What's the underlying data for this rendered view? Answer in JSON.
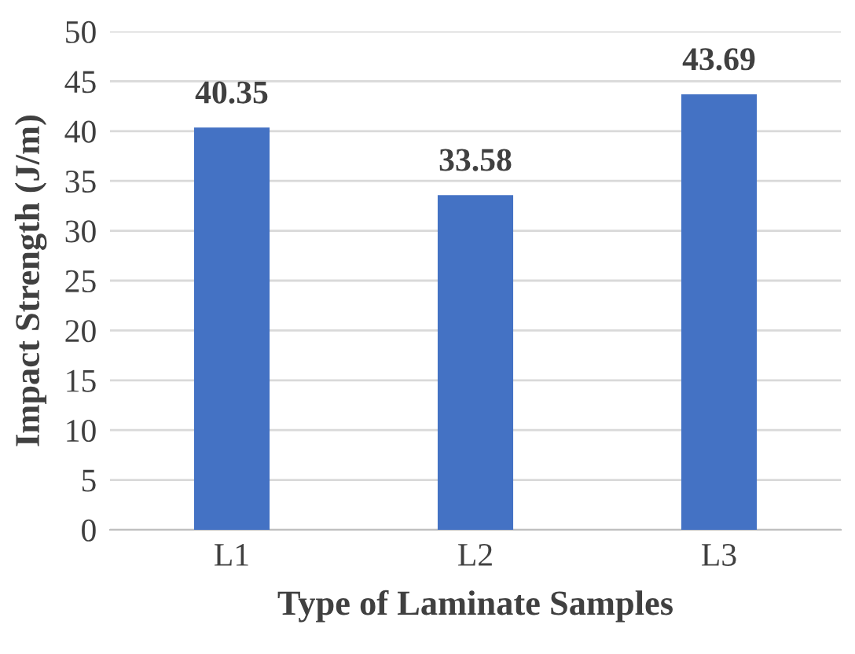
{
  "chart_data": {
    "type": "bar",
    "xlabel": "Type of Laminate Samples",
    "ylabel": "Impact Strength (J/m)",
    "categories": [
      "L1",
      "L2",
      "L3"
    ],
    "values": [
      40.35,
      33.58,
      43.69
    ],
    "color": "#4472c4",
    "ylim": [
      0,
      50
    ],
    "yticks": [
      0,
      5,
      10,
      15,
      20,
      25,
      30,
      35,
      40,
      45,
      50
    ],
    "grid": "y",
    "data_labels": true,
    "legend": false
  }
}
